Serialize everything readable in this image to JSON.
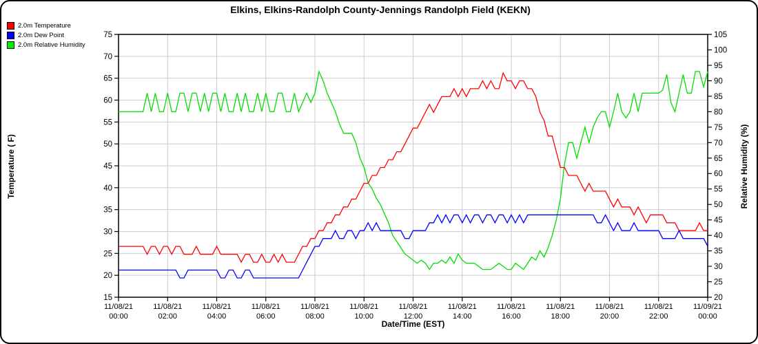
{
  "title": "Elkins, Elkins-Randolph County-Jennings Randolph Field (KEKN)",
  "legend": [
    {
      "label": "2.0m Temperature",
      "color": "#ff0000"
    },
    {
      "label": "2.0m Dew Point",
      "color": "#0000ff"
    },
    {
      "label": "2.0m Relative Humidity",
      "color": "#00ee00"
    }
  ],
  "chart_data": {
    "type": "line",
    "title": "Elkins, Elkins-Randolph County-Jennings Randolph Field (KEKN)",
    "xlabel": "Date/Time (EST)",
    "ylabel_left": "Temperature ( F)",
    "ylabel_right": "Relative Humidity (%)",
    "grid": true,
    "legend_position": "top-left",
    "grid_color": "#cccccc",
    "axis_left": {
      "min": 15,
      "max": 75,
      "step": 5
    },
    "axis_right": {
      "min": 20,
      "max": 105,
      "step": 5
    },
    "x_ticks": [
      {
        "date": "11/08/21",
        "time": "00:00"
      },
      {
        "date": "11/08/21",
        "time": "02:00"
      },
      {
        "date": "11/08/21",
        "time": "04:00"
      },
      {
        "date": "11/08/21",
        "time": "06:00"
      },
      {
        "date": "11/08/21",
        "time": "08:00"
      },
      {
        "date": "11/08/21",
        "time": "10:00"
      },
      {
        "date": "11/08/21",
        "time": "12:00"
      },
      {
        "date": "11/08/21",
        "time": "14:00"
      },
      {
        "date": "11/08/21",
        "time": "16:00"
      },
      {
        "date": "11/08/21",
        "time": "18:00"
      },
      {
        "date": "11/08/21",
        "time": "20:00"
      },
      {
        "date": "11/08/21",
        "time": "22:00"
      },
      {
        "date": "11/09/21",
        "time": "00:00"
      }
    ],
    "sample_interval_minutes": 10,
    "series": [
      {
        "name": "2.0m Temperature",
        "axis": "left",
        "color": "#ff0000",
        "unit": "F",
        "values": [
          26.6,
          26.6,
          26.6,
          26.6,
          26.6,
          26.6,
          26.6,
          24.8,
          26.6,
          26.6,
          24.8,
          26.6,
          26.6,
          24.8,
          26.6,
          26.6,
          24.8,
          24.8,
          24.8,
          26.6,
          24.8,
          24.8,
          24.8,
          24.8,
          26.6,
          24.8,
          24.8,
          24.8,
          24.8,
          24.8,
          23,
          24.8,
          24.8,
          23,
          23,
          24.8,
          23,
          23,
          24.8,
          23,
          24.8,
          23,
          23,
          23,
          24.8,
          26.6,
          26.6,
          28.4,
          28.4,
          30.2,
          30.2,
          32,
          32,
          33.8,
          33.8,
          35.6,
          35.6,
          37.4,
          37.4,
          39.2,
          41,
          41,
          42.8,
          42.8,
          44.6,
          44.6,
          46.4,
          46.4,
          48.2,
          48.2,
          50,
          51.8,
          53.6,
          53.6,
          55.4,
          57.2,
          59,
          57.2,
          59,
          60.8,
          60.8,
          60.8,
          62.6,
          60.8,
          62.6,
          60.8,
          62.6,
          62.6,
          62.6,
          64.4,
          62.6,
          64.4,
          62.6,
          62.6,
          66.2,
          64.4,
          64.4,
          62.6,
          64.4,
          64.4,
          62.6,
          62.6,
          60.8,
          57.2,
          55.4,
          51.8,
          51.8,
          48.2,
          44.6,
          44.6,
          42.8,
          42.8,
          42.8,
          41,
          39.2,
          41,
          39.2,
          39.2,
          39.2,
          39.2,
          37.4,
          35.6,
          37.4,
          35.6,
          35.6,
          35.6,
          33.8,
          35.6,
          33.8,
          32,
          33.8,
          33.8,
          33.8,
          33.8,
          32,
          32,
          32,
          30.2,
          30.2,
          30.2,
          30.2,
          30.2,
          32,
          30.2,
          30.2
        ]
      },
      {
        "name": "2.0m Dew Point",
        "axis": "left",
        "color": "#0000ff",
        "unit": "F",
        "values": [
          21.2,
          21.2,
          21.2,
          21.2,
          21.2,
          21.2,
          21.2,
          21.2,
          21.2,
          21.2,
          21.2,
          21.2,
          21.2,
          21.2,
          21.2,
          19.4,
          19.4,
          21.2,
          21.2,
          21.2,
          21.2,
          21.2,
          21.2,
          21.2,
          21.2,
          19.4,
          19.4,
          21.2,
          21.2,
          19.4,
          19.4,
          21.2,
          21.2,
          19.4,
          19.4,
          19.4,
          19.4,
          19.4,
          19.4,
          19.4,
          19.4,
          19.4,
          19.4,
          19.4,
          19.4,
          21.2,
          23,
          24.8,
          26.6,
          26.6,
          28.4,
          28.4,
          28.4,
          30.2,
          28.4,
          28.4,
          30.2,
          30.2,
          28.4,
          30.2,
          30.2,
          32,
          30.2,
          32,
          30.2,
          30.2,
          30.2,
          30.2,
          30.2,
          30.2,
          28.4,
          28.4,
          30.2,
          30.2,
          30.2,
          30.2,
          32,
          32,
          33.8,
          32,
          33.8,
          32,
          33.8,
          33.8,
          32,
          33.8,
          32,
          33.8,
          33.8,
          32,
          33.8,
          33.8,
          32,
          33.8,
          33.8,
          32,
          33.8,
          32,
          33.8,
          32,
          33.8,
          33.8,
          33.8,
          33.8,
          33.8,
          33.8,
          33.8,
          33.8,
          33.8,
          33.8,
          33.8,
          33.8,
          33.8,
          33.8,
          33.8,
          33.8,
          33.8,
          32,
          32,
          33.8,
          32,
          30.2,
          32,
          30.2,
          30.2,
          30.2,
          32,
          30.2,
          30.2,
          30.2,
          30.2,
          30.2,
          30.2,
          28.4,
          28.4,
          28.4,
          28.4,
          30.2,
          28.4,
          28.4,
          28.4,
          28.4,
          28.4,
          28.4,
          26.6
        ]
      },
      {
        "name": "2.0m Relative Humidity",
        "axis": "right",
        "color": "#00dd00",
        "unit": "%",
        "values": [
          80,
          80,
          80,
          80,
          80,
          80,
          80,
          86,
          80,
          86,
          80,
          80,
          86,
          80,
          80,
          86,
          86,
          80,
          86,
          86,
          80,
          86,
          80,
          86,
          86,
          80,
          86,
          80,
          80,
          86,
          80,
          86,
          80,
          80,
          86,
          80,
          86,
          80,
          80,
          86,
          86,
          80,
          80,
          86,
          80,
          83,
          86,
          83,
          86,
          93,
          90,
          86,
          83,
          80,
          76,
          73,
          73,
          73,
          70,
          65,
          62,
          57,
          55,
          52,
          50,
          47,
          44,
          40,
          38,
          36,
          34,
          33,
          32,
          31,
          32,
          31,
          29,
          31,
          31,
          32,
          31,
          33,
          31,
          34,
          32,
          31,
          31,
          31,
          30,
          29,
          29,
          29,
          30,
          31,
          30,
          29,
          29,
          31,
          30,
          29,
          31,
          33,
          32,
          35,
          33,
          36,
          40,
          45,
          52,
          63,
          70,
          70,
          65,
          70,
          75,
          70,
          75,
          78,
          80,
          80,
          75,
          80,
          86,
          80,
          78,
          80,
          86,
          80,
          86,
          86,
          86,
          86,
          86,
          87,
          92,
          83,
          80,
          86,
          92,
          86,
          86,
          93,
          93,
          88,
          93
        ]
      }
    ]
  }
}
